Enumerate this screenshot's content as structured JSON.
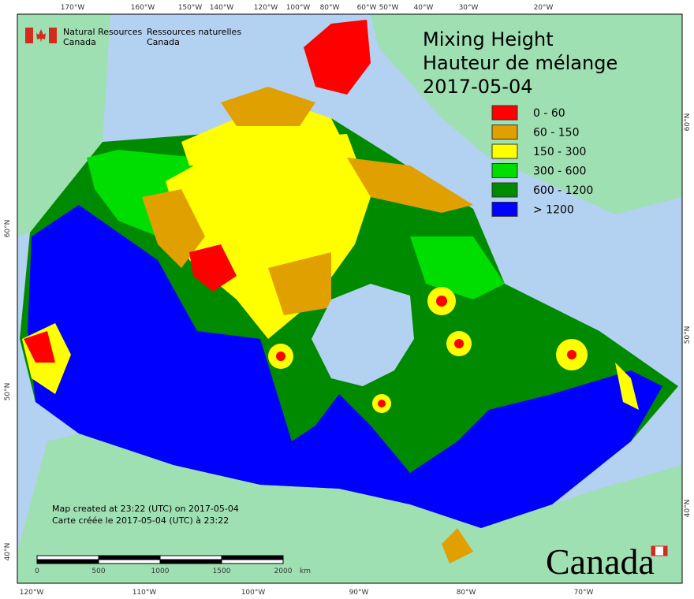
{
  "logo": {
    "en_line1": "Natural Resources",
    "en_line2": "Canada",
    "fr_line1": "Ressources naturelles",
    "fr_line2": "Canada"
  },
  "title": [
    "Mixing Height",
    "Hauteur de mélange",
    "2017-05-04"
  ],
  "legend": [
    {
      "label": "0 - 60",
      "color": "#ff0000"
    },
    {
      "label": "60 - 150",
      "color": "#e0a000"
    },
    {
      "label": "150 - 300",
      "color": "#ffff00"
    },
    {
      "label": "300 - 600",
      "color": "#00dd00"
    },
    {
      "label": "600 - 1200",
      "color": "#008a00"
    },
    {
      "label": "> 1200",
      "color": "#0000ff"
    }
  ],
  "top_longitudes": [
    "170°W",
    "160°W",
    "150°W",
    "140°W",
    "120°W",
    "100°W",
    "80°W",
    "60°W",
    "50°W",
    "40°W",
    "30°W",
    "20°W"
  ],
  "bottom_longitudes": [
    "120°W",
    "110°W",
    "100°W",
    "90°W",
    "80°W",
    "70°W"
  ],
  "left_latitudes": [
    "60°N",
    "50°N",
    "40°N"
  ],
  "right_latitudes": [
    "60°N",
    "50°N",
    "40°N"
  ],
  "credits": [
    "Map created at 23:22 (UTC) on 2017-05-04",
    "Carte créée le 2017-05-04 (UTC) à 23:22"
  ],
  "scale_bar": {
    "labels": [
      "0",
      "500",
      "1000",
      "1500",
      "2000"
    ],
    "unit": "km"
  },
  "wordmark": "Canada"
}
